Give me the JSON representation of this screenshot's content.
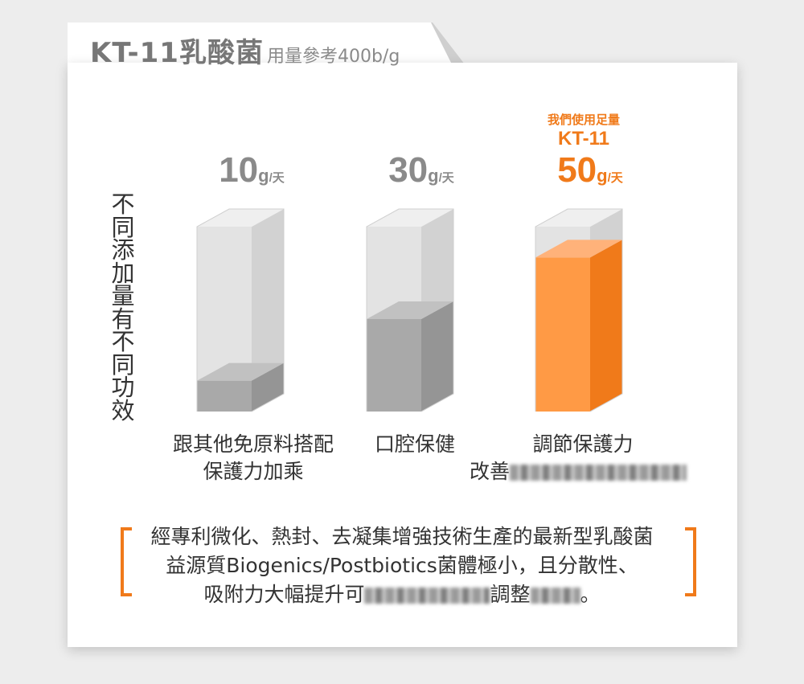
{
  "title": {
    "main": "KT-11乳酸菌",
    "sub": "用量參考400b/g"
  },
  "y_label": "不同添加量有不同功效",
  "chart_data": {
    "type": "bar",
    "title": "KT-11乳酸菌",
    "subtitle": "用量參考400b/g",
    "ylabel": "不同添加量有不同功效",
    "categories": [
      "10g/天",
      "30g/天",
      "50g/天"
    ],
    "values": [
      10,
      30,
      50
    ],
    "unit": "g/天",
    "ylim": [
      0,
      60
    ],
    "bars": [
      {
        "amount": "10",
        "unit": "g/天",
        "caption": [
          "跟其他免原料搭配",
          "保護力加乘"
        ]
      },
      {
        "amount": "30",
        "unit": "g/天",
        "caption": [
          "口腔保健"
        ]
      },
      {
        "amount": "50",
        "unit": "g/天",
        "caption": [
          "調節保護力",
          "改善"
        ],
        "highlight": true,
        "note": [
          "我們使用足量",
          "KT-11"
        ]
      }
    ],
    "grid": false,
    "legend": "none"
  },
  "description": {
    "line1": "經專利微化、熱封、去凝集增強技術生產的最新型乳酸菌",
    "line2": "益源質Biogenics/Postbiotics菌體極小，且分散性、",
    "line3a": "吸附力大幅提升可",
    "line3b": "調整",
    "line3c": "。"
  },
  "colors": {
    "accent": "#f07a1a",
    "accent_light": "#ff9a45",
    "gray_fill": "#a9a9a9",
    "empty_box": "#e3e3e3",
    "text": "#333333",
    "muted": "#8a8a8a"
  }
}
